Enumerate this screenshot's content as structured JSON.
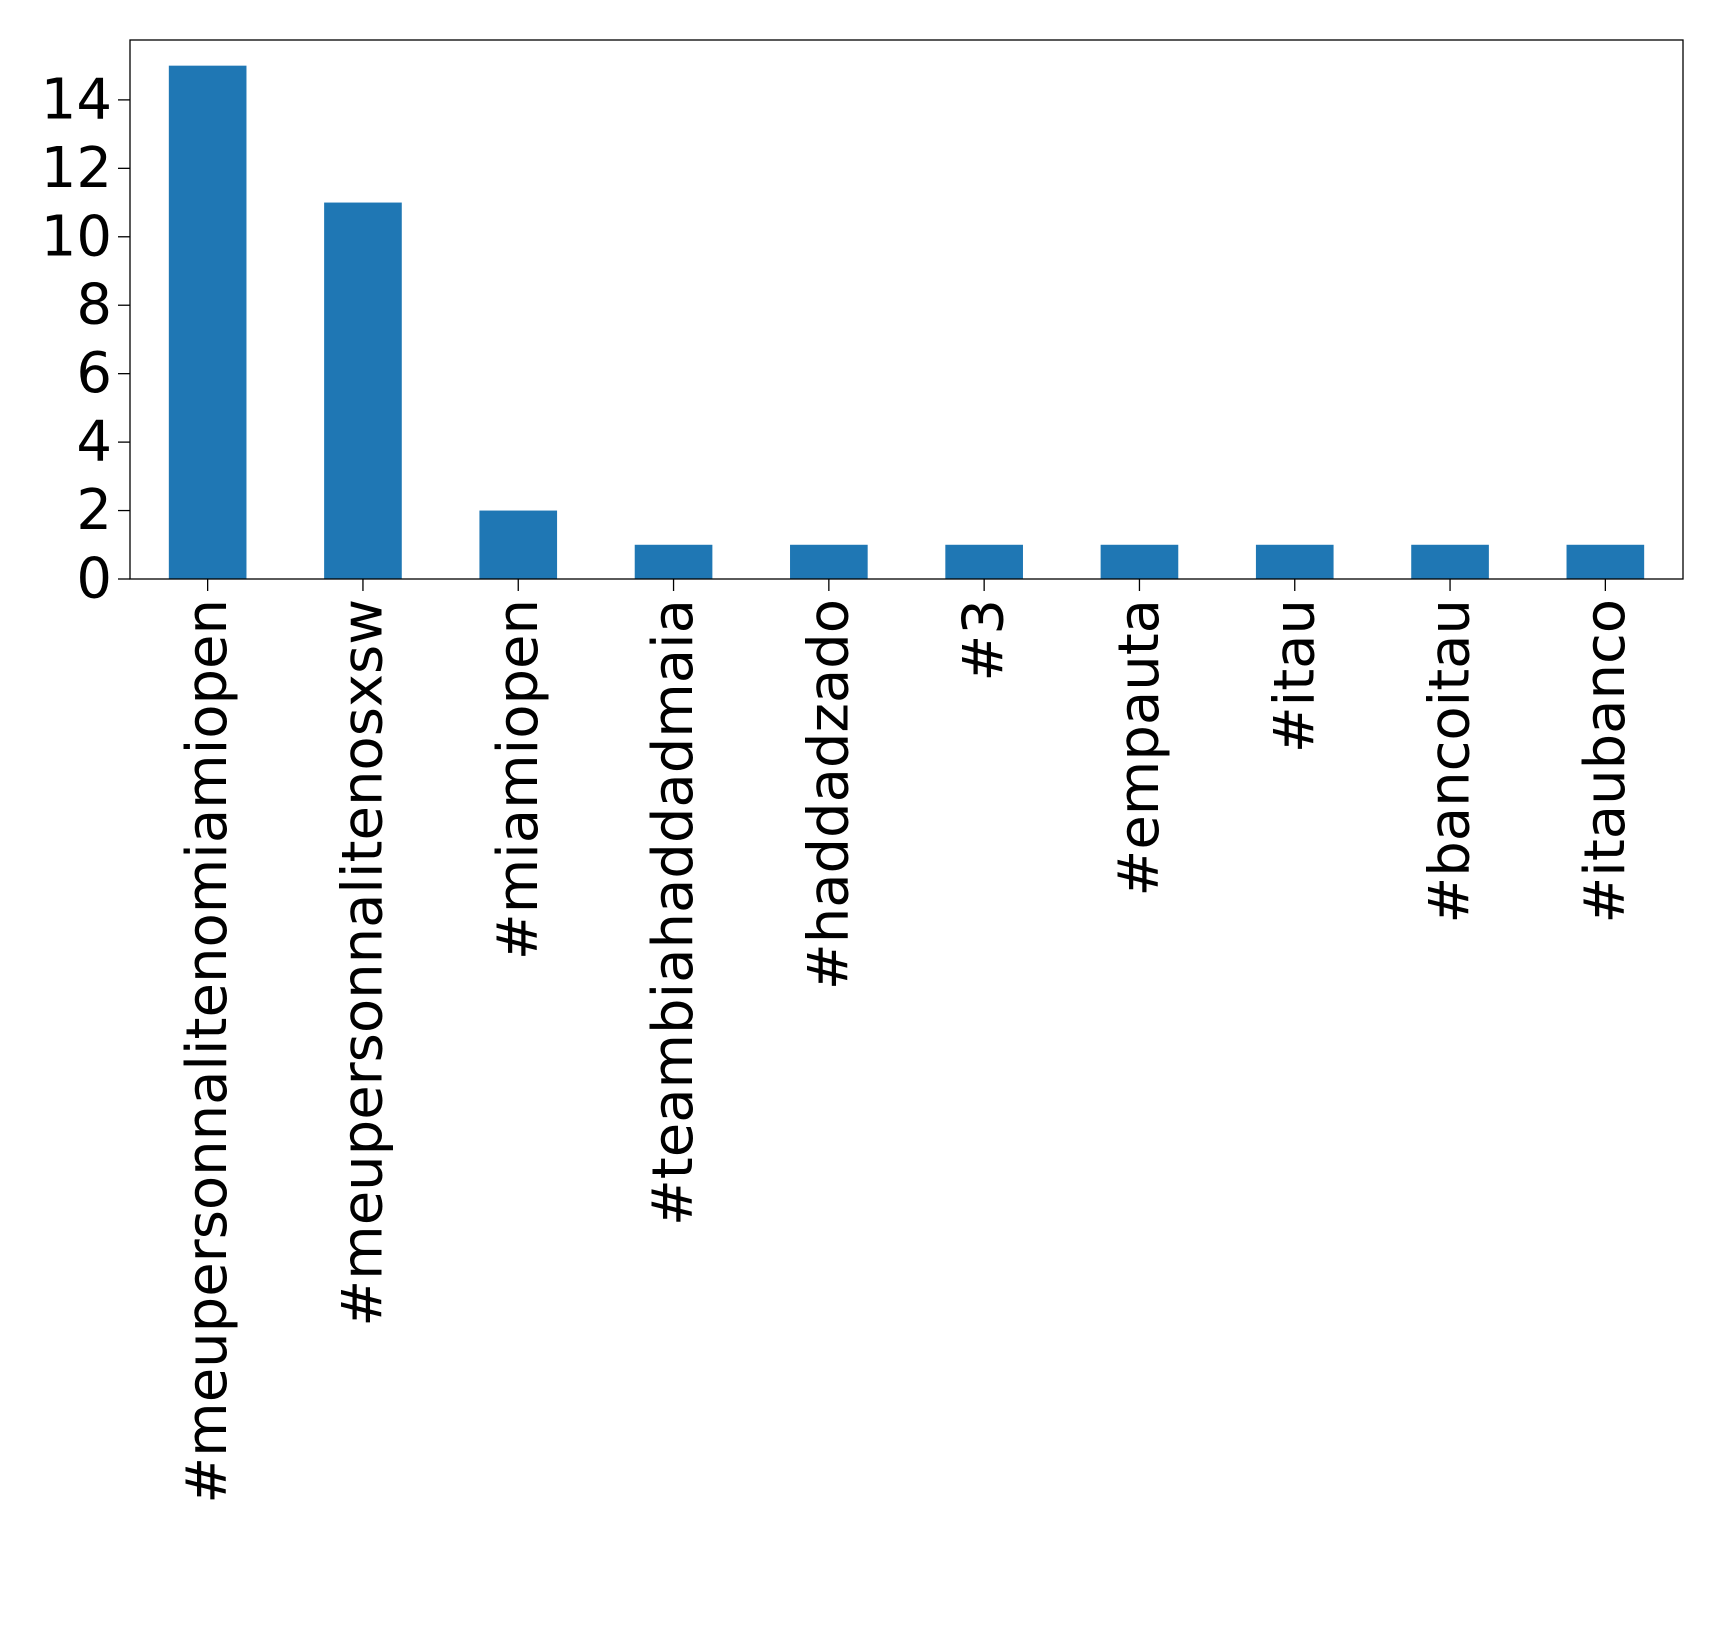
{
  "chart_data": {
    "type": "bar",
    "categories": [
      "#meupersonnalitenomiamiopen",
      "#meupersonnalitenosxsw",
      "#miamiopen",
      "#teambiahaddadmaia",
      "#haddadzado",
      "#3",
      "#empauta",
      "#itau",
      "#bancoitau",
      "#itaubanco"
    ],
    "values": [
      15,
      11,
      2,
      1,
      1,
      1,
      1,
      1,
      1,
      1
    ],
    "yticks": [
      "0",
      "2",
      "4",
      "6",
      "8",
      "10",
      "12",
      "14"
    ],
    "ylim": [
      0,
      15.75
    ],
    "title": "",
    "xlabel": "",
    "ylabel": "",
    "grid": false,
    "legend": "none",
    "bar_color": "#1f77b4"
  }
}
